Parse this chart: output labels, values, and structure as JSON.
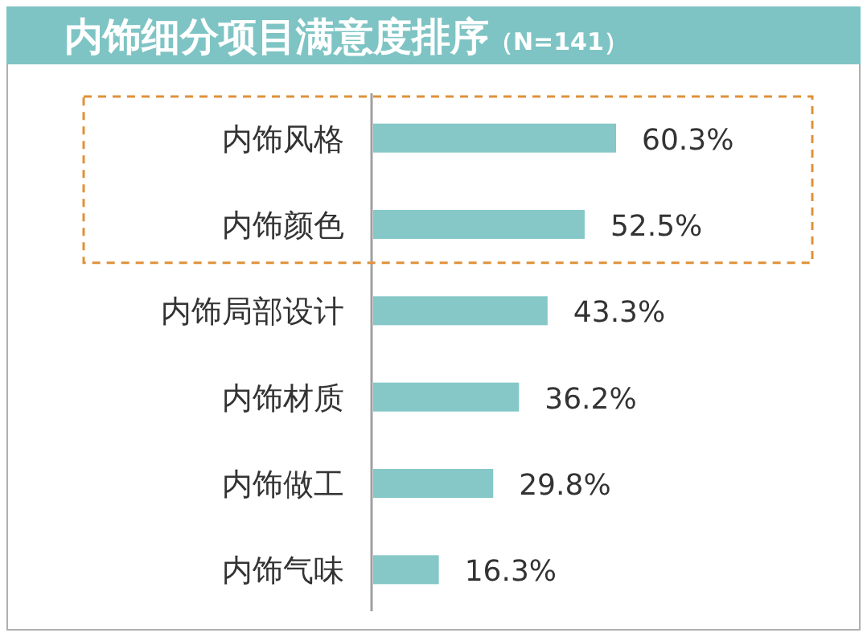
{
  "chart_data": {
    "type": "bar",
    "orientation": "horizontal",
    "title": "内饰细分项目满意度排序",
    "subtitle": "（N=141）",
    "categories": [
      "内饰风格",
      "内饰颜色",
      "内饰局部设计",
      "内饰材质",
      "内饰做工",
      "内饰气味"
    ],
    "values": [
      60.3,
      52.5,
      43.3,
      36.2,
      29.8,
      16.3
    ],
    "value_labels": [
      "60.3%",
      "52.5%",
      "43.3%",
      "36.2%",
      "29.8%",
      "16.3%"
    ],
    "color": "#86c8c8"
  }
}
